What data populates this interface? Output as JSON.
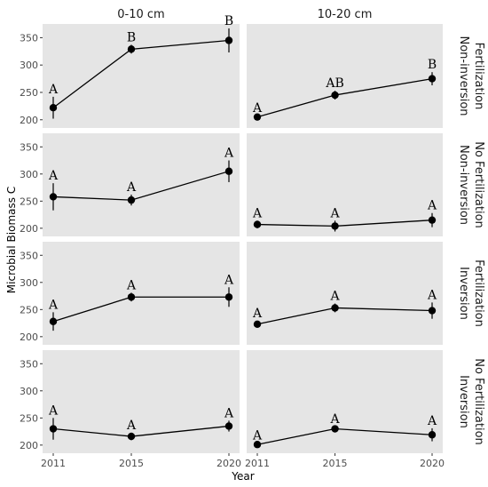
{
  "chart_data": {
    "type": "line",
    "xlabel": "Year",
    "ylabel": "Microbial Biomass C",
    "x": [
      "2011",
      "2015",
      "2020"
    ],
    "x_values": [
      2011,
      2015,
      2020
    ],
    "ylim": [
      185,
      375
    ],
    "yticks": [
      200,
      250,
      300,
      350
    ],
    "grid": false,
    "columns": [
      "0-10 cm",
      "10-20 cm"
    ],
    "rows": [
      {
        "label_lines": [
          "Non-inversion",
          "Fertilization"
        ]
      },
      {
        "label_lines": [
          "Non-inversion",
          "No Fertilization"
        ]
      },
      {
        "label_lines": [
          "Inversion",
          "Fertilization"
        ]
      },
      {
        "label_lines": [
          "Inversion",
          "No Fertilization"
        ]
      }
    ],
    "panels": [
      {
        "row": 0,
        "col": 0,
        "values": [
          222,
          329,
          345
        ],
        "errors": [
          20,
          8,
          22
        ],
        "letters": [
          "A",
          "B",
          "B"
        ]
      },
      {
        "row": 0,
        "col": 1,
        "values": [
          205,
          245,
          275
        ],
        "errors": [
          3,
          8,
          12
        ],
        "letters": [
          "A",
          "AB",
          "B"
        ]
      },
      {
        "row": 1,
        "col": 0,
        "values": [
          258,
          252,
          305
        ],
        "errors": [
          25,
          10,
          20
        ],
        "letters": [
          "A",
          "A",
          "A"
        ]
      },
      {
        "row": 1,
        "col": 1,
        "values": [
          207,
          204,
          215
        ],
        "errors": [
          7,
          10,
          13
        ],
        "letters": [
          "A",
          "A",
          "A"
        ]
      },
      {
        "row": 2,
        "col": 0,
        "values": [
          228,
          273,
          273
        ],
        "errors": [
          17,
          8,
          18
        ],
        "letters": [
          "A",
          "A",
          "A"
        ]
      },
      {
        "row": 2,
        "col": 1,
        "values": [
          223,
          253,
          248
        ],
        "errors": [
          6,
          8,
          15
        ],
        "letters": [
          "A",
          "A",
          "A"
        ]
      },
      {
        "row": 3,
        "col": 0,
        "values": [
          230,
          216,
          235
        ],
        "errors": [
          20,
          7,
          10
        ],
        "letters": [
          "A",
          "A",
          "A"
        ]
      },
      {
        "row": 3,
        "col": 1,
        "values": [
          201,
          230,
          219
        ],
        "errors": [
          3,
          4,
          12
        ],
        "letters": [
          "A",
          "A",
          "A"
        ]
      }
    ],
    "colors": {
      "panel_bg": "#e5e5e5",
      "line": "#000000",
      "point": "#000000"
    }
  }
}
